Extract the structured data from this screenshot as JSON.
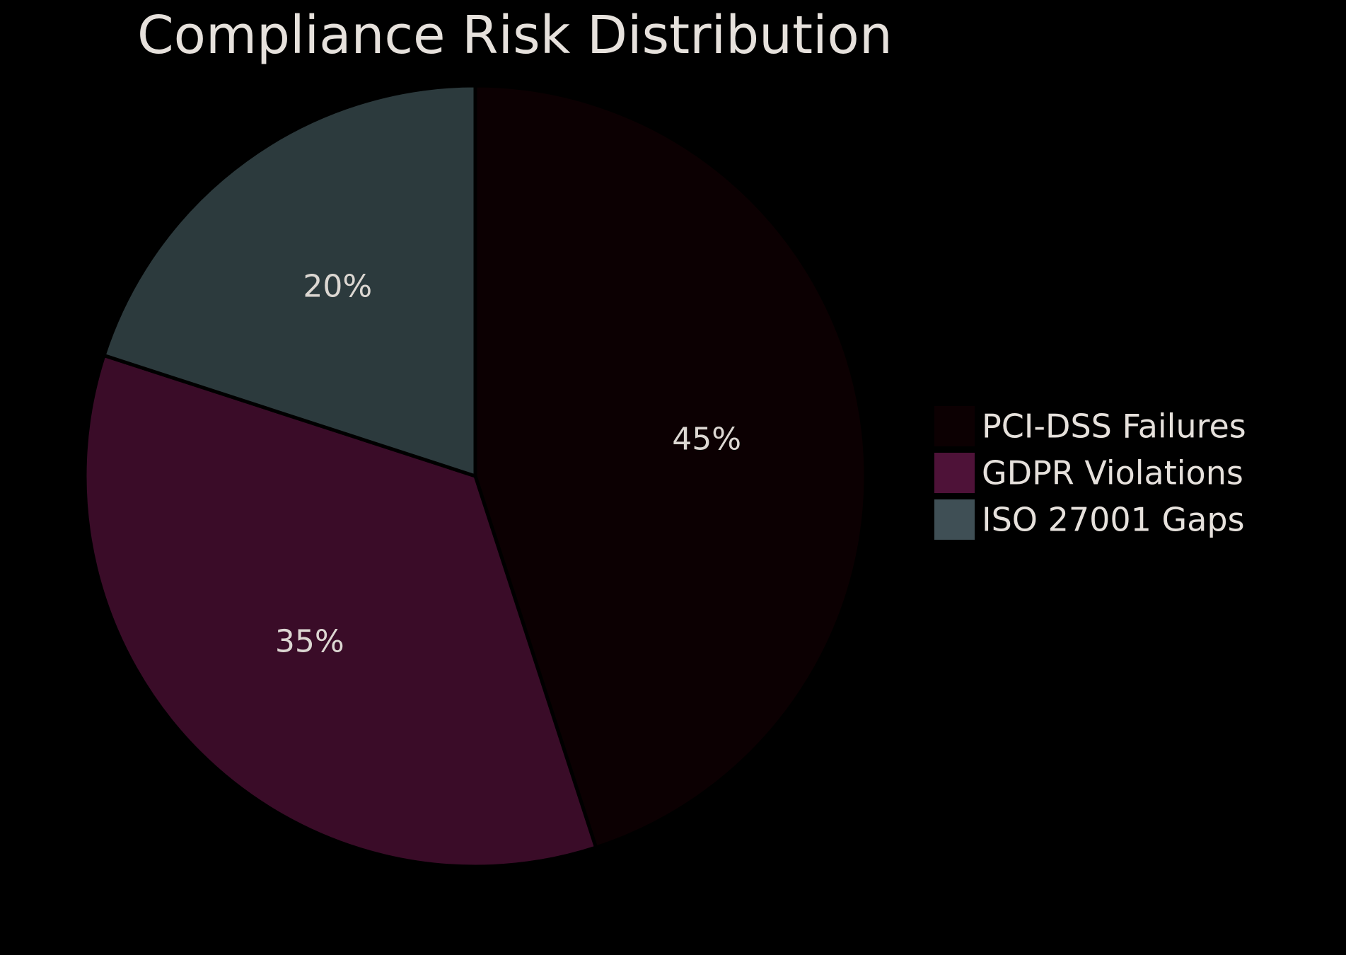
{
  "chart_data": {
    "type": "pie",
    "title": "Compliance Risk Distribution",
    "categories": [
      "PCI-DSS Failures",
      "GDPR Violations",
      "ISO 27001 Gaps"
    ],
    "values": [
      45,
      35,
      20
    ],
    "value_labels": [
      "45%",
      "35%",
      "20%"
    ],
    "colors": [
      "#0c0002",
      "#3a0c28",
      "#2c3a3d"
    ],
    "legend_colors": [
      "#0c0002",
      "#4e1238",
      "#3f4f55"
    ],
    "start_angle": "12 o'clock",
    "direction": "clockwise",
    "legend_placement": "right"
  },
  "background_color": "#000000",
  "slice_edge_color": "#000000",
  "text_color": "#e6e1dc"
}
